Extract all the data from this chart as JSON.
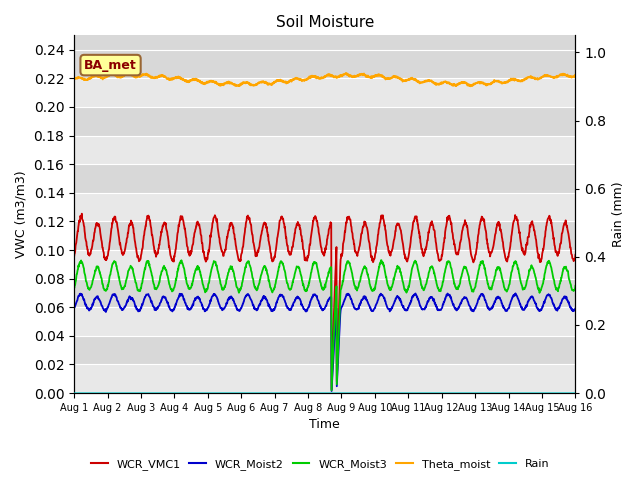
{
  "title": "Soil Moisture",
  "xlabel": "Time",
  "ylabel_left": "VWC (m3/m3)",
  "ylabel_right": "Rain (mm)",
  "annotation": "BA_met",
  "ylim_left": [
    0.0,
    0.25
  ],
  "ylim_right": [
    0.0,
    1.05
  ],
  "yticks_left": [
    0.0,
    0.02,
    0.04,
    0.06,
    0.08,
    0.1,
    0.12,
    0.14,
    0.16,
    0.18,
    0.2,
    0.22,
    0.24
  ],
  "yticks_right_vals": [
    0.0,
    0.2,
    0.4,
    0.6,
    0.8,
    1.0
  ],
  "colors": {
    "WCR_VMC1": "#cc0000",
    "WCR_Moist2": "#0000cc",
    "WCR_Moist3": "#00cc00",
    "Theta_moist": "#ffa500",
    "Rain": "#00cccc"
  },
  "x_tick_labels": [
    "Aug 1",
    "Aug 2",
    "Aug 3",
    "Aug 4",
    "Aug 5",
    "Aug 6",
    "Aug 7",
    "Aug 8",
    "Aug 9",
    "Aug 10",
    "Aug 11",
    "Aug 12",
    "Aug 13",
    "Aug 14",
    "Aug 15",
    "Aug 16"
  ],
  "background_color": "#d8d8d8",
  "stripe_color": "#e8e8e8"
}
